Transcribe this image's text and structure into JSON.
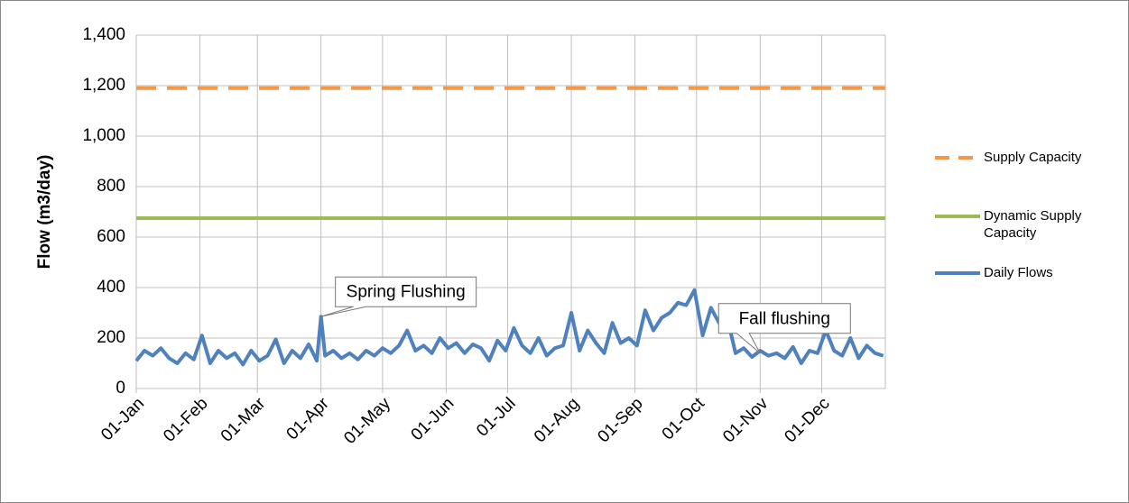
{
  "chart_data": {
    "type": "line",
    "y_label": "Flow (m3/day)",
    "xlim": [
      0,
      365
    ],
    "xticks": [
      {
        "value": 0,
        "label": "01-Jan"
      },
      {
        "value": 31,
        "label": "01-Feb"
      },
      {
        "value": 59,
        "label": "01-Mar"
      },
      {
        "value": 90,
        "label": "01-Apr"
      },
      {
        "value": 120,
        "label": "01-May"
      },
      {
        "value": 151,
        "label": "01-Jun"
      },
      {
        "value": 181,
        "label": "01-Jul"
      },
      {
        "value": 212,
        "label": "01-Aug"
      },
      {
        "value": 243,
        "label": "01-Sep"
      },
      {
        "value": 273,
        "label": "01-Oct"
      },
      {
        "value": 304,
        "label": "01-Nov"
      },
      {
        "value": 334,
        "label": "01-Dec"
      }
    ],
    "ylim": [
      0,
      1400
    ],
    "yticks": [
      0,
      200,
      400,
      600,
      800,
      {
        "value": 1000,
        "label": "1,000"
      },
      {
        "value": 1200,
        "label": "1,200"
      },
      {
        "value": 1400,
        "label": "1,400"
      }
    ],
    "grid": true,
    "legend": "right",
    "series": [
      {
        "name": "Supply Capacity",
        "color": "#f79646",
        "dash": true,
        "x": [
          0,
          365
        ],
        "values": [
          1190,
          1190
        ]
      },
      {
        "name": "Dynamic Supply Capacity",
        "color": "#9bbb59",
        "dash": false,
        "x": [
          0,
          365
        ],
        "values": [
          675,
          675
        ]
      },
      {
        "name": "Daily Flows",
        "color": "#4f81bd",
        "dash": false,
        "x": [
          0,
          4,
          8,
          12,
          16,
          20,
          24,
          28,
          32,
          36,
          40,
          44,
          48,
          52,
          56,
          60,
          64,
          68,
          72,
          76,
          80,
          84,
          88,
          90,
          92,
          96,
          100,
          104,
          108,
          112,
          116,
          120,
          124,
          128,
          132,
          136,
          140,
          144,
          148,
          152,
          156,
          160,
          164,
          168,
          172,
          176,
          180,
          184,
          188,
          192,
          196,
          200,
          204,
          208,
          212,
          216,
          220,
          224,
          228,
          232,
          236,
          240,
          244,
          248,
          252,
          256,
          260,
          264,
          268,
          272,
          276,
          280,
          284,
          288,
          292,
          296,
          300,
          304,
          308,
          312,
          316,
          320,
          324,
          328,
          332,
          336,
          340,
          344,
          348,
          352,
          356,
          360,
          364
        ],
        "values": [
          110,
          150,
          130,
          160,
          120,
          100,
          140,
          115,
          210,
          100,
          150,
          120,
          140,
          95,
          150,
          110,
          130,
          195,
          100,
          150,
          120,
          175,
          110,
          285,
          130,
          150,
          120,
          140,
          115,
          150,
          130,
          160,
          140,
          170,
          230,
          150,
          170,
          140,
          200,
          160,
          180,
          140,
          175,
          160,
          110,
          190,
          150,
          240,
          170,
          140,
          200,
          130,
          160,
          170,
          300,
          150,
          230,
          180,
          140,
          260,
          180,
          200,
          170,
          310,
          230,
          280,
          300,
          340,
          330,
          390,
          210,
          320,
          260,
          280,
          140,
          160,
          125,
          150,
          130,
          140,
          120,
          165,
          100,
          150,
          140,
          230,
          150,
          130,
          200,
          120,
          170,
          140,
          130
        ]
      }
    ],
    "annotations": [
      {
        "text": "Spring Flushing",
        "x": 90,
        "y": 285
      },
      {
        "text": "Fall flushing",
        "x": 304,
        "y": 140
      }
    ]
  }
}
